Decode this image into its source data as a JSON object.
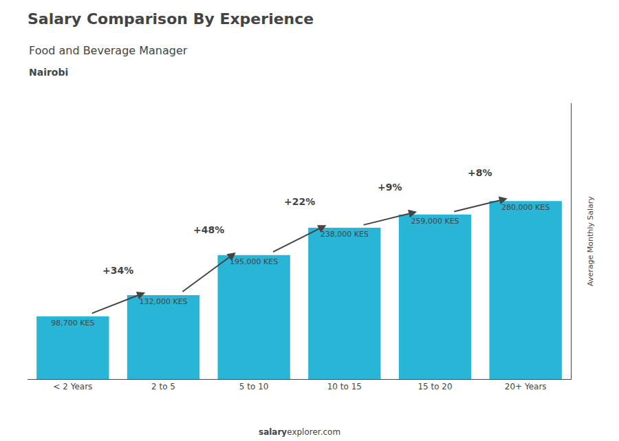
{
  "chart_data": {
    "type": "bar",
    "title": "Salary Comparison By Experience",
    "subtitle": "Food and Beverage Manager",
    "city": "Nairobi",
    "ylabel": "Average Monthly Salary",
    "categories": [
      "< 2 Years",
      "2 to 5",
      "5 to 10",
      "10 to 15",
      "15 to 20",
      "20+ Years"
    ],
    "values": [
      98700,
      132000,
      195000,
      238000,
      259000,
      280000
    ],
    "value_labels": [
      "98,700 KES",
      "132,000 KES",
      "195,000 KES",
      "238,000 KES",
      "259,000 KES",
      "280,000 KES"
    ],
    "data_labels": true,
    "color": "#29b5d5",
    "ylim": [
      0,
      434000
    ],
    "tick_labels": "x",
    "grid": false,
    "annotations": [
      {
        "from": "< 2 Years",
        "to": "2 to 5",
        "text": "+34%"
      },
      {
        "from": "2 to 5",
        "to": "5 to 10",
        "text": "+48%"
      },
      {
        "from": "5 to 10",
        "to": "10 to 15",
        "text": "+22%"
      },
      {
        "from": "10 to 15",
        "to": "15 to 20",
        "text": "+9%"
      },
      {
        "from": "15 to 20",
        "to": "20+ Years",
        "text": "+8%"
      }
    ],
    "footer": [
      "salary",
      "explorer.com"
    ]
  }
}
